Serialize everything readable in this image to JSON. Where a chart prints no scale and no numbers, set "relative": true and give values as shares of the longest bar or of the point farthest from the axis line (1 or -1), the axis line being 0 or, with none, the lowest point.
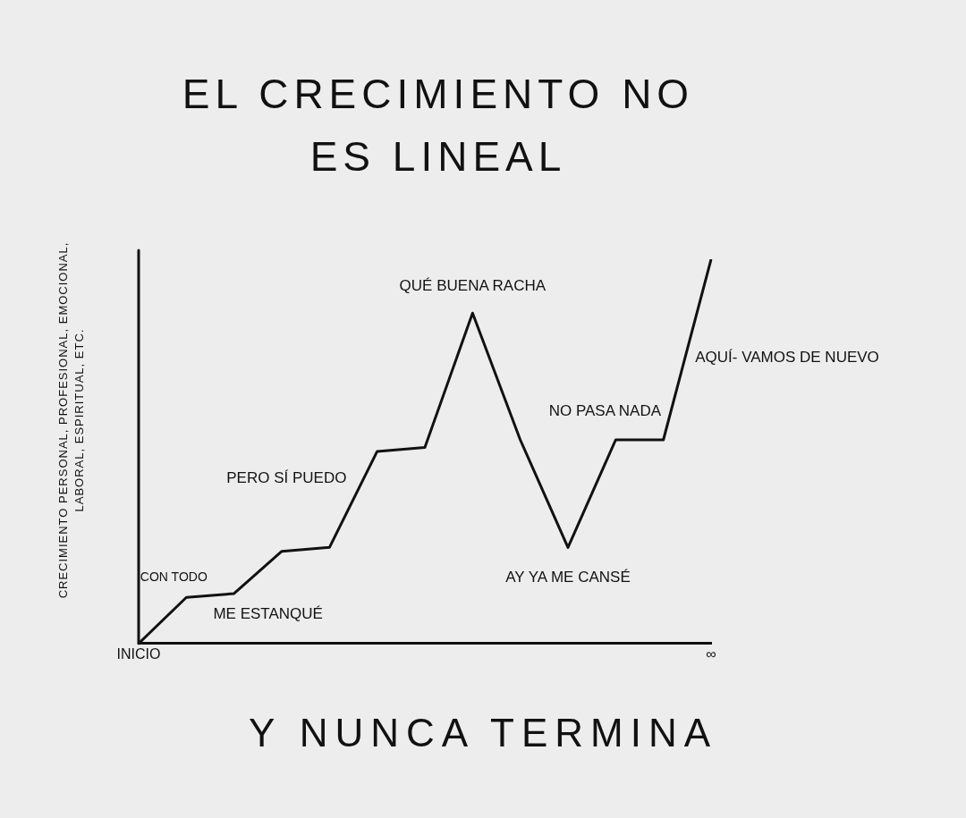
{
  "chart_data": {
    "type": "line",
    "title": "EL CRECIMIENTO NO ES LINEAL",
    "ylabel": "CRECIMIENTO PERSONAL, PROFESIONAL, EMOCIONAL, LABORAL, ESPIRITUAL, ETC.",
    "relative": true,
    "categories": [
      "INICIO",
      null,
      null,
      null,
      null,
      null,
      null,
      null,
      null,
      null,
      null,
      null,
      "∞"
    ],
    "series": [
      {
        "color": "#111111",
        "values": [
          0,
          0.12,
          0.13,
          0.24,
          0.25,
          0.5,
          0.51,
          0.86,
          0.53,
          0.25,
          0.53,
          0.53,
          1
        ]
      }
    ],
    "marker": "none",
    "line_style": "solid",
    "grid": false,
    "legend": false,
    "annotations": [
      "CON TODO",
      "ME ESTANQUÉ",
      "PERO SÍ PUEDO",
      "QUÉ BUENA RACHA",
      "AY YA ME CANSÉ",
      "NO PASA NADA",
      "AQUÍ- VAMOS DE NUEVO",
      "Y NUNCA TERMINA"
    ]
  }
}
